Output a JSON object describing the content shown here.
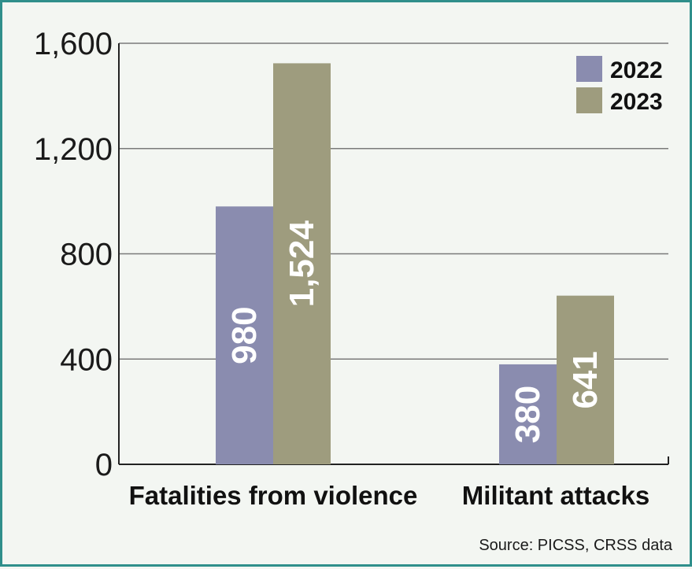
{
  "chart_data": {
    "type": "bar",
    "categories": [
      "Fatalities from violence",
      "Militant attacks"
    ],
    "series": [
      {
        "name": "2022",
        "values": [
          980,
          380
        ],
        "color": "#8a8caf"
      },
      {
        "name": "2023",
        "values": [
          1524,
          641
        ],
        "color": "#9e9c7e"
      }
    ],
    "ylim": [
      0,
      1600
    ],
    "yticks": [
      0,
      400,
      800,
      1200,
      1600
    ],
    "ytick_labels": [
      "0",
      "400",
      "800",
      "1,200",
      "1,600"
    ],
    "value_labels": [
      [
        "980",
        "380"
      ],
      [
        "1,524",
        "641"
      ]
    ],
    "grid": true,
    "legend_position": "top-right"
  },
  "source": "Source: PICSS, CRSS data"
}
